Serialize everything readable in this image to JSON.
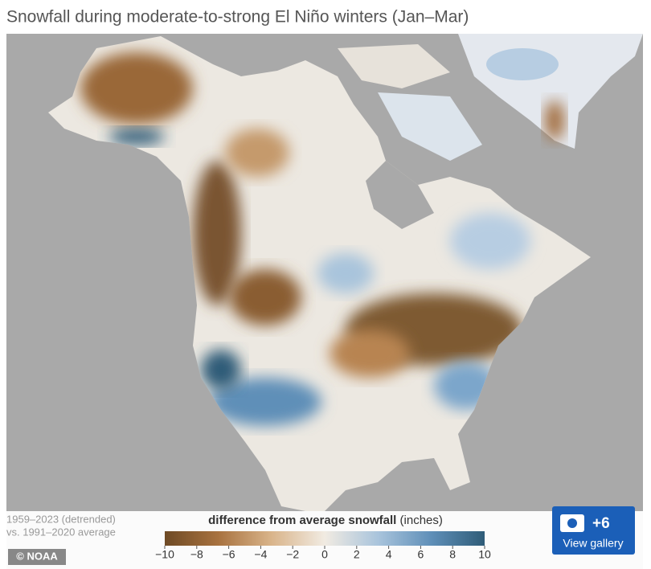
{
  "title": "Snowfall during moderate-to-strong El Niño winters (Jan–Mar)",
  "notes": [
    "1959–2023 (detrended)",
    "vs. 1991–2020 average"
  ],
  "legend": {
    "label": "difference from average snowfall",
    "unit": "(inches)",
    "range": [
      -10,
      10
    ],
    "ticks": [
      {
        "value": -10,
        "label": "−10"
      },
      {
        "value": -8,
        "label": "−8"
      },
      {
        "value": -6,
        "label": "−6"
      },
      {
        "value": -4,
        "label": "−4"
      },
      {
        "value": -2,
        "label": "−2"
      },
      0,
      2,
      4,
      6,
      8,
      10
    ],
    "colors": [
      "#6e4a25",
      "#a8723f",
      "#d9b48a",
      "#f1ebe2",
      "#a9c4dc",
      "#5f8fb8",
      "#2f5c78"
    ]
  },
  "credit": "© NOAA",
  "gallery": {
    "count": "+6",
    "label": "View gallery"
  }
}
